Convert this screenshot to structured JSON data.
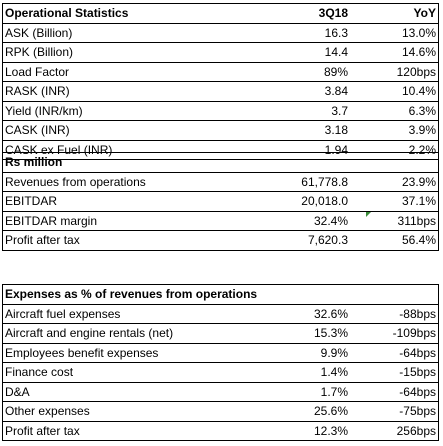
{
  "operational": {
    "title": "Operational Statistics",
    "col_period": "3Q18",
    "col_yoy": "YoY",
    "rows": [
      {
        "label": "ASK (Billion)",
        "value": "16.3",
        "yoy": "13.0%"
      },
      {
        "label": "RPK (Billion)",
        "value": "14.4",
        "yoy": "14.6%"
      },
      {
        "label": "Load Factor",
        "value": "89%",
        "yoy": "120bps"
      },
      {
        "label": "RASK (INR)",
        "value": "3.84",
        "yoy": "10.4%"
      },
      {
        "label": "Yield (INR/km)",
        "value": "3.7",
        "yoy": "6.3%"
      },
      {
        "label": "CASK (INR)",
        "value": "3.18",
        "yoy": "3.9%"
      },
      {
        "label": "CASK ex Fuel (INR)",
        "value": "1.94",
        "yoy": "2.2%"
      }
    ]
  },
  "financial": {
    "title": "Rs million",
    "rows": [
      {
        "label": "Revenues from operations",
        "value": "61,778.8",
        "yoy": "23.9%"
      },
      {
        "label": "EBITDAR",
        "value": "20,018.0",
        "yoy": "37.1%"
      },
      {
        "label": "EBITDAR margin",
        "value": "32.4%",
        "yoy": "311bps"
      },
      {
        "label": "Profit after tax",
        "value": "7,620.3",
        "yoy": "56.4%"
      }
    ]
  },
  "expenses": {
    "title": "Expenses as % of revenues from operations",
    "rows": [
      {
        "label": "Aircraft fuel expenses",
        "value": "32.6%",
        "yoy": "-88bps"
      },
      {
        "label": "Aircraft and engine rentals (net)",
        "value": "15.3%",
        "yoy": "-109bps"
      },
      {
        "label": "Employees benefit expenses",
        "value": "9.9%",
        "yoy": "-64bps"
      },
      {
        "label": "Finance cost",
        "value": "1.4%",
        "yoy": "-15bps"
      },
      {
        "label": "D&A",
        "value": "1.7%",
        "yoy": "-64bps"
      },
      {
        "label": "Other expenses",
        "value": "25.6%",
        "yoy": "-75bps"
      },
      {
        "label": "Profit after tax",
        "value": "12.3%",
        "yoy": "256bps"
      }
    ]
  }
}
